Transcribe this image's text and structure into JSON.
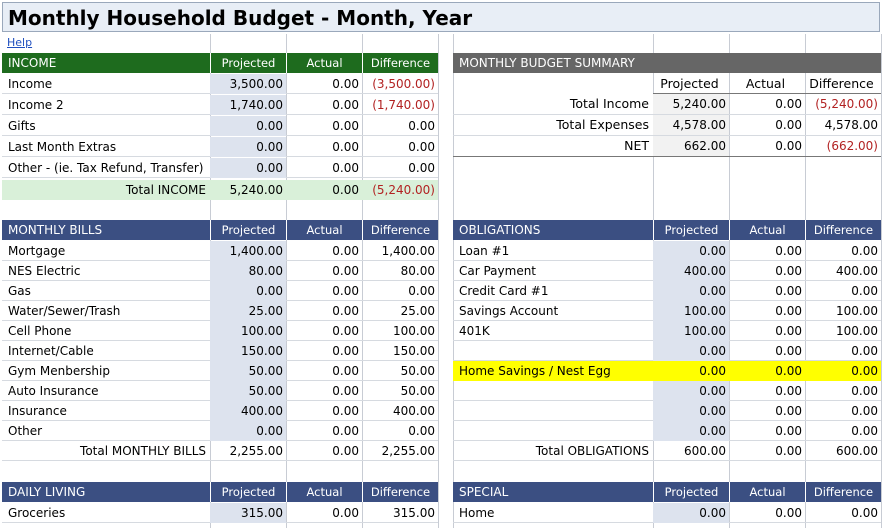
{
  "title": "Monthly Household Budget - Month, Year",
  "help": "Help",
  "columns": {
    "projected": "Projected",
    "actual": "Actual",
    "difference": "Difference"
  },
  "colors": {
    "green_header": "#1e6b1e",
    "blue_header": "#3b4f82",
    "gray_header": "#666666",
    "highlight": "#ffff00"
  },
  "income": {
    "header": "INCOME",
    "rows": [
      {
        "label": "Income",
        "projected": "3,500.00",
        "actual": "0.00",
        "difference": "(3,500.00)",
        "neg": true
      },
      {
        "label": "Income 2",
        "projected": "1,740.00",
        "actual": "0.00",
        "difference": "(1,740.00)",
        "neg": true
      },
      {
        "label": "Gifts",
        "projected": "0.00",
        "actual": "0.00",
        "difference": "0.00",
        "neg": false
      },
      {
        "label": "Last Month Extras",
        "projected": "0.00",
        "actual": "0.00",
        "difference": "0.00",
        "neg": false
      },
      {
        "label": "Other - (ie. Tax Refund, Transfer)",
        "projected": "0.00",
        "actual": "0.00",
        "difference": "0.00",
        "neg": false
      }
    ],
    "total": {
      "label": "Total INCOME",
      "projected": "5,240.00",
      "actual": "0.00",
      "difference": "(5,240.00)",
      "neg": true
    }
  },
  "summary": {
    "header": "MONTHLY BUDGET SUMMARY",
    "rows": [
      {
        "label": "Total Income",
        "projected": "5,240.00",
        "actual": "0.00",
        "difference": "(5,240.00)",
        "neg": true
      },
      {
        "label": "Total Expenses",
        "projected": "4,578.00",
        "actual": "0.00",
        "difference": "4,578.00",
        "neg": false
      },
      {
        "label": "NET",
        "projected": "662.00",
        "actual": "0.00",
        "difference": "(662.00)",
        "neg": true
      }
    ]
  },
  "bills": {
    "header": "MONTHLY BILLS",
    "rows": [
      {
        "label": "Mortgage",
        "projected": "1,400.00",
        "actual": "0.00",
        "difference": "1,400.00"
      },
      {
        "label": "NES Electric",
        "projected": "80.00",
        "actual": "0.00",
        "difference": "80.00"
      },
      {
        "label": "Gas",
        "projected": "0.00",
        "actual": "0.00",
        "difference": "0.00"
      },
      {
        "label": "Water/Sewer/Trash",
        "projected": "25.00",
        "actual": "0.00",
        "difference": "25.00"
      },
      {
        "label": "Cell Phone",
        "projected": "100.00",
        "actual": "0.00",
        "difference": "100.00"
      },
      {
        "label": "Internet/Cable",
        "projected": "150.00",
        "actual": "0.00",
        "difference": "150.00"
      },
      {
        "label": "Gym Menbership",
        "projected": "50.00",
        "actual": "0.00",
        "difference": "50.00"
      },
      {
        "label": "Auto Insurance",
        "projected": "50.00",
        "actual": "0.00",
        "difference": "50.00"
      },
      {
        "label": "Insurance",
        "projected": "400.00",
        "actual": "0.00",
        "difference": "400.00"
      },
      {
        "label": "Other",
        "projected": "0.00",
        "actual": "0.00",
        "difference": "0.00"
      }
    ],
    "total": {
      "label": "Total MONTHLY BILLS",
      "projected": "2,255.00",
      "actual": "0.00",
      "difference": "2,255.00"
    }
  },
  "obligations": {
    "header": "OBLIGATIONS",
    "rows": [
      {
        "label": "Loan #1",
        "projected": "0.00",
        "actual": "0.00",
        "difference": "0.00"
      },
      {
        "label": "Car Payment",
        "projected": "400.00",
        "actual": "0.00",
        "difference": "400.00"
      },
      {
        "label": "Credit Card #1",
        "projected": "0.00",
        "actual": "0.00",
        "difference": "0.00"
      },
      {
        "label": "Savings Account",
        "projected": "100.00",
        "actual": "0.00",
        "difference": "100.00"
      },
      {
        "label": "401K",
        "projected": "100.00",
        "actual": "0.00",
        "difference": "100.00"
      },
      {
        "label": "",
        "projected": "0.00",
        "actual": "0.00",
        "difference": "0.00"
      },
      {
        "label": "Home Savings / Nest Egg",
        "projected": "0.00",
        "actual": "0.00",
        "difference": "0.00",
        "highlight": true
      },
      {
        "label": "",
        "projected": "0.00",
        "actual": "0.00",
        "difference": "0.00"
      },
      {
        "label": "",
        "projected": "0.00",
        "actual": "0.00",
        "difference": "0.00"
      },
      {
        "label": "",
        "projected": "0.00",
        "actual": "0.00",
        "difference": "0.00"
      }
    ],
    "total": {
      "label": "Total OBLIGATIONS",
      "projected": "600.00",
      "actual": "0.00",
      "difference": "600.00"
    }
  },
  "daily": {
    "header": "DAILY LIVING",
    "rows": [
      {
        "label": "Groceries",
        "projected": "315.00",
        "actual": "0.00",
        "difference": "315.00"
      }
    ]
  },
  "special": {
    "header": "SPECIAL",
    "rows": [
      {
        "label": "Home",
        "projected": "0.00",
        "actual": "0.00",
        "difference": "0.00"
      }
    ]
  }
}
